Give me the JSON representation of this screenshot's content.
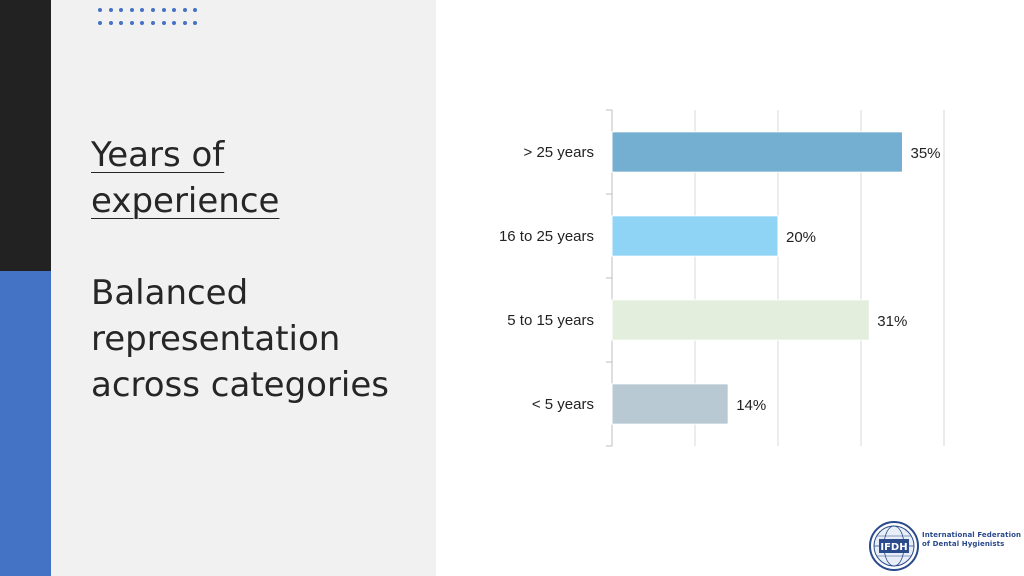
{
  "slide": {
    "title": "Years of experience",
    "subtitle": "Balanced representation across categories"
  },
  "logo": {
    "abbrev": "IFDH",
    "name_line1": "International Federation",
    "name_line2": "of Dental Hygienists"
  },
  "colors": {
    "accent_blue": "#4472c4",
    "dark_stripe": "#222222",
    "panel_bg": "#f1f1f1"
  },
  "chart_data": {
    "type": "bar",
    "orientation": "horizontal",
    "categories": [
      "> 25 years",
      "16 to 25 years",
      "5 to 15 years",
      "< 5 years"
    ],
    "values": [
      35,
      20,
      31,
      14
    ],
    "data_labels": [
      "35%",
      "20%",
      "31%",
      "14%"
    ],
    "bar_colors": [
      "#74afd1",
      "#8fd4f4",
      "#e3eedd",
      "#b9c9d4"
    ],
    "xlim": [
      0,
      40
    ],
    "grid": true,
    "legend": "none"
  }
}
